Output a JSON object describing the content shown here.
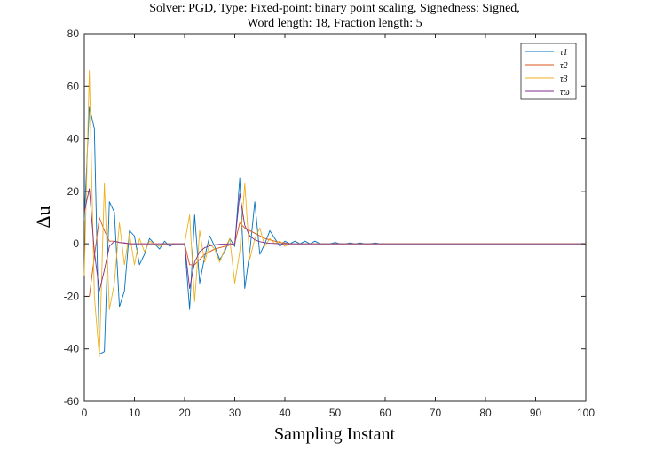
{
  "chart_data": {
    "type": "line",
    "title": "Solver: PGD, Type: Fixed-point: binary point scaling, Signedness: Signed,",
    "subtitle": "Word length: 18, Fraction length: 5",
    "xlabel": "Sampling Instant",
    "ylabel": "Δu",
    "xlim": [
      0,
      100
    ],
    "ylim": [
      -60,
      80
    ],
    "xticks": [
      0,
      10,
      20,
      30,
      40,
      50,
      60,
      70,
      80,
      90,
      100
    ],
    "yticks": [
      -60,
      -40,
      -20,
      0,
      20,
      40,
      60,
      80
    ],
    "grid": false,
    "legend_position": "top-right",
    "series": [
      {
        "name": "τ1",
        "color": "#0072BD",
        "x": [
          0,
          1,
          2,
          3,
          4,
          5,
          6,
          7,
          8,
          9,
          10,
          11,
          12,
          13,
          14,
          15,
          16,
          17,
          18,
          19,
          20,
          21,
          22,
          23,
          24,
          25,
          26,
          27,
          28,
          29,
          30,
          31,
          32,
          33,
          34,
          35,
          36,
          37,
          38,
          39,
          40,
          41,
          42,
          43,
          44,
          45,
          46,
          47,
          48,
          49,
          50,
          51,
          52,
          53,
          54,
          55,
          56,
          57,
          58,
          59,
          60,
          70,
          80,
          90,
          100
        ],
        "y": [
          9,
          52,
          44,
          -42,
          -41,
          16,
          12,
          -24,
          -18,
          5,
          3,
          -8,
          -4,
          2,
          0,
          -2,
          1,
          -1,
          0,
          0,
          0,
          -25,
          11,
          -15,
          -5,
          3,
          -1,
          -6,
          -3,
          2,
          -1,
          25,
          -17,
          -3,
          16,
          -4,
          0,
          5,
          2,
          -1,
          1,
          0,
          1,
          0,
          1,
          0,
          1,
          0,
          0,
          0,
          0.5,
          0,
          0,
          0.3,
          0,
          0.3,
          0,
          0,
          0.3,
          0,
          0,
          0,
          0,
          0,
          0
        ]
      },
      {
        "name": "τ2",
        "color": "#D95319",
        "x": [
          0,
          1,
          2,
          3,
          4,
          5,
          6,
          7,
          8,
          9,
          10,
          11,
          12,
          13,
          14,
          15,
          16,
          17,
          18,
          19,
          20,
          21,
          22,
          23,
          24,
          25,
          26,
          27,
          28,
          29,
          30,
          31,
          32,
          33,
          34,
          35,
          36,
          37,
          38,
          39,
          40,
          41,
          42,
          43,
          44,
          45,
          46,
          47,
          48,
          49,
          50,
          60,
          70,
          80,
          90,
          100
        ],
        "y": [
          -20,
          -20,
          -5,
          10,
          5,
          1,
          1,
          0.5,
          0.3,
          0,
          0,
          0,
          0,
          0,
          0,
          0,
          0,
          0,
          0,
          0,
          0,
          -8,
          -8,
          -6,
          -4,
          -3,
          -2,
          -1.5,
          -1,
          -0.5,
          0,
          8,
          6,
          5,
          4,
          3,
          2,
          1.5,
          1,
          0.5,
          0.3,
          0,
          0,
          0,
          0,
          0,
          0,
          0,
          0,
          0,
          0,
          0,
          0,
          0,
          0,
          0
        ]
      },
      {
        "name": "τ3",
        "color": "#EDB120",
        "x": [
          0,
          1,
          2,
          3,
          4,
          5,
          6,
          7,
          8,
          9,
          10,
          11,
          12,
          13,
          14,
          15,
          16,
          17,
          18,
          19,
          20,
          21,
          22,
          23,
          24,
          25,
          26,
          27,
          28,
          29,
          30,
          31,
          32,
          33,
          34,
          35,
          36,
          37,
          38,
          39,
          40,
          41,
          42,
          43,
          44,
          45,
          46,
          47,
          48,
          49,
          50,
          60,
          70,
          80,
          90,
          100
        ],
        "y": [
          -12,
          66,
          -20,
          -43,
          23,
          -25,
          -15,
          8,
          -8,
          4,
          -8,
          2,
          -3,
          1,
          0,
          -1,
          0,
          0,
          0,
          0,
          0,
          11,
          -22,
          5,
          -7,
          0,
          -2,
          -7,
          -2,
          2,
          -15,
          -3,
          23,
          -6,
          2,
          6,
          -1,
          2,
          0,
          1,
          -1,
          0,
          0,
          0,
          0,
          0,
          0,
          0,
          0,
          0,
          0,
          0,
          0,
          0,
          0,
          0
        ]
      },
      {
        "name": "τω",
        "color": "#7E2F8E",
        "x": [
          0,
          1,
          2,
          3,
          4,
          5,
          6,
          7,
          8,
          9,
          10,
          11,
          12,
          13,
          14,
          15,
          16,
          17,
          18,
          19,
          20,
          21,
          22,
          23,
          24,
          25,
          26,
          27,
          28,
          29,
          30,
          31,
          32,
          33,
          34,
          35,
          36,
          37,
          38,
          39,
          40,
          41,
          42,
          43,
          44,
          45,
          46,
          47,
          48,
          49,
          50,
          60,
          70,
          80,
          90,
          100
        ],
        "y": [
          12,
          21,
          -3,
          -18,
          -10,
          -1,
          1,
          0.5,
          0.3,
          0,
          0,
          0,
          0,
          0,
          0,
          0,
          0,
          0,
          0,
          0,
          0,
          -17,
          -7,
          -3,
          -1.5,
          -0.8,
          -0.4,
          -0.2,
          -0.1,
          0,
          0,
          19,
          7,
          3,
          1.5,
          0.8,
          0.4,
          0.2,
          0.1,
          0,
          0,
          0,
          0,
          0,
          0,
          0,
          0,
          0,
          0,
          0,
          0,
          0,
          0,
          0,
          0,
          0
        ]
      }
    ]
  }
}
